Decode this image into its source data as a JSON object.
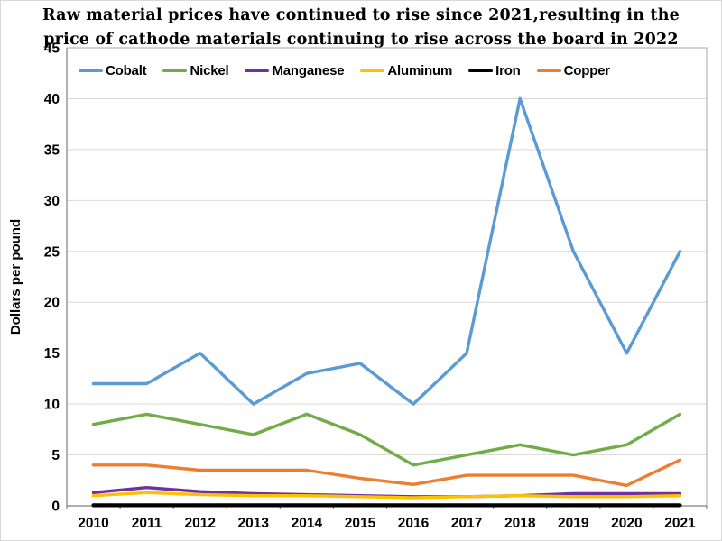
{
  "chart_data": {
    "type": "line",
    "title_line1": "Raw material prices have continued to rise since 2021,resulting in the",
    "title_line2": "price of cathode materials continuing to rise across the board in 2022",
    "ylabel": "Dollars per pound",
    "categories": [
      "2010",
      "2011",
      "2012",
      "2013",
      "2014",
      "2015",
      "2016",
      "2017",
      "2018",
      "2019",
      "2020",
      "2021"
    ],
    "ylim": [
      0,
      45
    ],
    "yticks": [
      0,
      5,
      10,
      15,
      20,
      25,
      30,
      35,
      40,
      45
    ],
    "grid": true,
    "legend_position": "top-inside",
    "series": [
      {
        "name": "Cobalt",
        "color": "#5B9BD5",
        "values": [
          12,
          12,
          15,
          10,
          13,
          14,
          10,
          15,
          40,
          25,
          15,
          25
        ]
      },
      {
        "name": "Nickel",
        "color": "#70AD47",
        "values": [
          8,
          9,
          8,
          7,
          9,
          7,
          4,
          5,
          6,
          5,
          6,
          9
        ]
      },
      {
        "name": "Manganese",
        "color": "#7030A0",
        "values": [
          1.3,
          1.8,
          1.4,
          1.2,
          1.1,
          1.0,
          0.9,
          0.9,
          1.0,
          1.2,
          1.2,
          1.2
        ]
      },
      {
        "name": "Aluminum",
        "color": "#FFC000",
        "values": [
          1.0,
          1.3,
          1.1,
          1.0,
          1.0,
          0.9,
          0.8,
          0.9,
          1.0,
          0.9,
          0.9,
          1.0
        ]
      },
      {
        "name": "Iron",
        "color": "#000000",
        "values": [
          0.05,
          0.05,
          0.05,
          0.05,
          0.05,
          0.05,
          0.05,
          0.05,
          0.05,
          0.05,
          0.05,
          0.05
        ]
      },
      {
        "name": "Copper",
        "color": "#ED7D31",
        "values": [
          4,
          4,
          3.5,
          3.5,
          3.5,
          2.7,
          2.1,
          3,
          3,
          3,
          2,
          4.5
        ]
      }
    ]
  },
  "colors": {
    "background": "#ffffff",
    "gridline": "#d9d9d9",
    "plot_border": "#a6a6a6",
    "axis": "#7f7f7f",
    "text": "#000000"
  }
}
